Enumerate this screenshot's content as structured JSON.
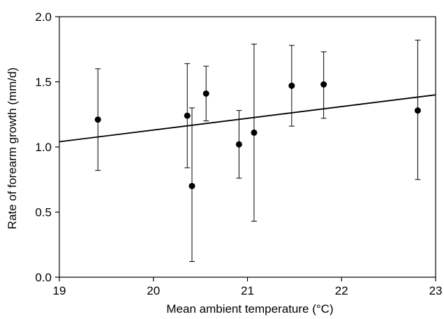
{
  "chart_data": {
    "type": "scatter",
    "title": "",
    "xlabel": "Mean ambient temperature (°C)",
    "ylabel": "Rate of forearm growth (mm/d)",
    "xlim": [
      19,
      23
    ],
    "ylim": [
      0.0,
      2.0
    ],
    "x_ticks": [
      19,
      20,
      21,
      22,
      23
    ],
    "x_tick_labels": [
      "19",
      "20",
      "21",
      "22",
      "23"
    ],
    "y_ticks": [
      0.0,
      0.5,
      1.0,
      1.5,
      2.0
    ],
    "y_tick_labels": [
      "0.0",
      "0.5",
      "1.0",
      "1.5",
      "2.0"
    ],
    "grid": false,
    "legend": "none",
    "points": [
      {
        "x": 19.41,
        "y": 1.21,
        "err_low": 0.82,
        "err_high": 1.6
      },
      {
        "x": 20.36,
        "y": 1.24,
        "err_low": 0.84,
        "err_high": 1.64
      },
      {
        "x": 20.41,
        "y": 0.7,
        "err_low": 0.12,
        "err_high": 1.3
      },
      {
        "x": 20.56,
        "y": 1.41,
        "err_low": 1.2,
        "err_high": 1.62
      },
      {
        "x": 20.91,
        "y": 1.02,
        "err_low": 0.76,
        "err_high": 1.28
      },
      {
        "x": 21.07,
        "y": 1.11,
        "err_low": 0.43,
        "err_high": 1.79
      },
      {
        "x": 21.47,
        "y": 1.47,
        "err_low": 1.16,
        "err_high": 1.78
      },
      {
        "x": 21.81,
        "y": 1.48,
        "err_low": 1.22,
        "err_high": 1.73
      },
      {
        "x": 22.81,
        "y": 1.28,
        "err_low": 0.75,
        "err_high": 1.82
      }
    ],
    "trend_line": {
      "x": [
        19,
        23
      ],
      "y": [
        1.04,
        1.4
      ]
    },
    "colors": {
      "marker": "#000000",
      "line": "#000000",
      "background": "#ffffff"
    }
  }
}
